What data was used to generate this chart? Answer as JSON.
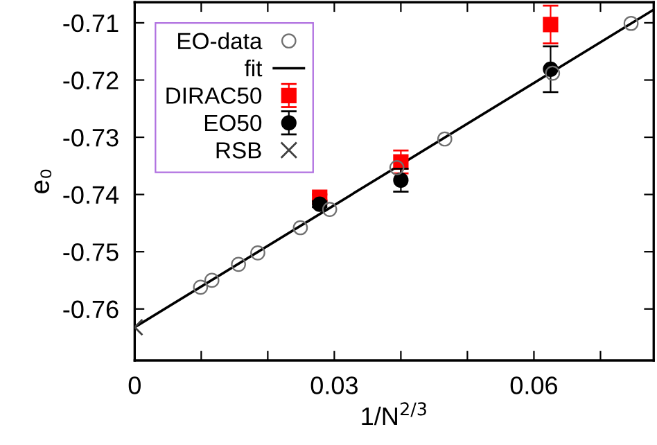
{
  "chart_data": {
    "type": "scatter",
    "xlabel": "1/N$^{2/3}$",
    "ylabel": "e₀",
    "xlim": [
      0,
      0.078
    ],
    "ylim": [
      -0.769,
      -0.7064
    ],
    "xticks": [
      0,
      {
        "value": 0.01,
        "label": null
      },
      {
        "value": 0.02,
        "label": null
      },
      0.03,
      {
        "value": 0.04,
        "label": null
      },
      {
        "value": 0.05,
        "label": null
      },
      0.06,
      {
        "value": 0.07,
        "label": null
      }
    ],
    "yticks": [
      -0.71,
      -0.72,
      -0.73,
      -0.74,
      -0.75,
      -0.76
    ],
    "grid": false,
    "legend": "top left",
    "series": [
      {
        "name": "EO-data",
        "marker": "circle",
        "color": "#707070",
        "x": [
          0.0099,
          0.0116,
          0.0156,
          0.0185,
          0.0249,
          0.0293,
          0.0394,
          0.0466,
          0.0628,
          0.0746
        ],
        "values": [
          -0.7562,
          -0.755,
          -0.7522,
          -0.7502,
          -0.7458,
          -0.7426,
          -0.7353,
          -0.7303,
          -0.7188,
          -0.7101
        ]
      },
      {
        "name": "fit",
        "type": "line",
        "marker": "none",
        "line_style": "solid",
        "color": "#000000",
        "x": [
          0,
          0.078
        ],
        "values": [
          -0.7632,
          -0.7077
        ]
      },
      {
        "name": "DIRAC50",
        "marker": "square",
        "color": "#ff0000",
        "x": [
          0.0278,
          0.04,
          0.0625
        ],
        "values": [
          -0.7405,
          -0.7343,
          -0.7103
        ],
        "errors": [
          0.0005,
          0.002,
          0.0033
        ]
      },
      {
        "name": "EO50",
        "marker": "circle",
        "color": "#000000",
        "x": [
          0.0278,
          0.04,
          0.0625
        ],
        "values": [
          -0.7417,
          -0.7375,
          -0.7181
        ],
        "errors": [
          0.0005,
          0.002,
          0.004
        ]
      },
      {
        "name": "RSB",
        "marker": "cross",
        "color": "#404040",
        "x": [
          0
        ],
        "values": [
          -0.7632
        ]
      }
    ]
  }
}
